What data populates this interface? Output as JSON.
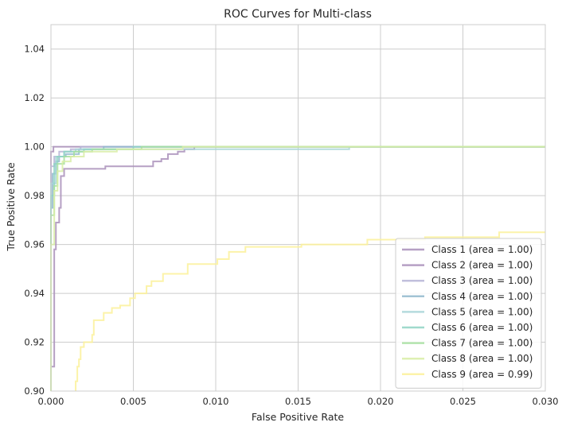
{
  "chart_data": {
    "type": "line",
    "title": "ROC Curves for Multi-class",
    "xlabel": "False Positive Rate",
    "ylabel": "True Positive Rate",
    "xlim": [
      0.0,
      0.03
    ],
    "ylim": [
      0.9,
      1.05
    ],
    "xticks": [
      "0.000",
      "0.005",
      "0.010",
      "0.015",
      "0.020",
      "0.025",
      "0.030"
    ],
    "yticks": [
      "0.90",
      "0.92",
      "0.94",
      "0.96",
      "0.98",
      "1.00",
      "1.02",
      "1.04"
    ],
    "grid": true,
    "legend_position": "lower-right",
    "series": [
      {
        "name": "Class 1 (area = 1.00)",
        "color": "#a98fba",
        "points": [
          [
            0,
            0.9
          ],
          [
            0,
            0.998
          ],
          [
            0.00015,
            0.998
          ],
          [
            0.00015,
            1.0
          ],
          [
            0.03,
            1.0
          ]
        ]
      },
      {
        "name": "Class 2 (area = 1.00)",
        "color": "#a98fba",
        "points": [
          [
            0,
            0.9
          ],
          [
            0,
            0.91
          ],
          [
            0.0002,
            0.91
          ],
          [
            0.0002,
            0.958
          ],
          [
            0.0003,
            0.958
          ],
          [
            0.0003,
            0.969
          ],
          [
            0.0005,
            0.969
          ],
          [
            0.0005,
            0.975
          ],
          [
            0.0006,
            0.975
          ],
          [
            0.0006,
            0.988
          ],
          [
            0.0008,
            0.988
          ],
          [
            0.0008,
            0.991
          ],
          [
            0.0033,
            0.991
          ],
          [
            0.0033,
            0.992
          ],
          [
            0.0062,
            0.992
          ],
          [
            0.0062,
            0.994
          ],
          [
            0.0067,
            0.994
          ],
          [
            0.0067,
            0.995
          ],
          [
            0.0071,
            0.995
          ],
          [
            0.0071,
            0.997
          ],
          [
            0.0077,
            0.997
          ],
          [
            0.0077,
            0.998
          ],
          [
            0.0081,
            0.998
          ],
          [
            0.0081,
            0.999
          ],
          [
            0.0087,
            0.999
          ],
          [
            0.0087,
            1.0
          ],
          [
            0.03,
            1.0
          ]
        ]
      },
      {
        "name": "Class 3 (area = 1.00)",
        "color": "#b6b4d6",
        "points": [
          [
            0,
            0.9
          ],
          [
            0,
            0.992
          ],
          [
            0.0002,
            0.992
          ],
          [
            0.0002,
            0.996
          ],
          [
            0.0005,
            0.996
          ],
          [
            0.0005,
            0.998
          ],
          [
            0.0012,
            0.998
          ],
          [
            0.0012,
            0.999
          ],
          [
            0.0018,
            0.999
          ],
          [
            0.0018,
            1.0
          ],
          [
            0.03,
            1.0
          ]
        ]
      },
      {
        "name": "Class 4 (area = 1.00)",
        "color": "#92b9cc",
        "points": [
          [
            0,
            0.9
          ],
          [
            0,
            0.975
          ],
          [
            0.0001,
            0.975
          ],
          [
            0.0001,
            0.989
          ],
          [
            0.0003,
            0.989
          ],
          [
            0.0003,
            0.994
          ],
          [
            0.0005,
            0.994
          ],
          [
            0.0005,
            0.996
          ],
          [
            0.0009,
            0.996
          ],
          [
            0.0009,
            0.997
          ],
          [
            0.0017,
            0.997
          ],
          [
            0.0017,
            0.999
          ],
          [
            0.0032,
            0.999
          ],
          [
            0.0032,
            1.0
          ],
          [
            0.03,
            1.0
          ]
        ]
      },
      {
        "name": "Class 5 (area = 1.00)",
        "color": "#a8d5d8",
        "points": [
          [
            0,
            0.9
          ],
          [
            0,
            0.985
          ],
          [
            0.0003,
            0.985
          ],
          [
            0.0003,
            0.996
          ],
          [
            0.0008,
            0.996
          ],
          [
            0.0008,
            0.998
          ],
          [
            0.0015,
            0.998
          ],
          [
            0.0015,
            0.999
          ],
          [
            0.0181,
            0.999
          ],
          [
            0.0181,
            1.0
          ],
          [
            0.03,
            1.0
          ]
        ]
      },
      {
        "name": "Class 6 (area = 1.00)",
        "color": "#8fd3c4",
        "points": [
          [
            0,
            0.9
          ],
          [
            0,
            0.98
          ],
          [
            0.0002,
            0.98
          ],
          [
            0.0002,
            0.993
          ],
          [
            0.0004,
            0.993
          ],
          [
            0.0004,
            0.996
          ],
          [
            0.0008,
            0.996
          ],
          [
            0.0008,
            0.998
          ],
          [
            0.002,
            0.998
          ],
          [
            0.002,
            0.999
          ],
          [
            0.005,
            0.999
          ],
          [
            0.005,
            1.0
          ],
          [
            0.03,
            1.0
          ]
        ]
      },
      {
        "name": "Class 7 (area = 1.00)",
        "color": "#a6dfa0",
        "points": [
          [
            0,
            0.9
          ],
          [
            0,
            0.972
          ],
          [
            0.0002,
            0.972
          ],
          [
            0.0002,
            0.984
          ],
          [
            0.0004,
            0.984
          ],
          [
            0.0004,
            0.993
          ],
          [
            0.0008,
            0.993
          ],
          [
            0.0008,
            0.996
          ],
          [
            0.0014,
            0.996
          ],
          [
            0.0014,
            0.998
          ],
          [
            0.0025,
            0.998
          ],
          [
            0.0025,
            0.999
          ],
          [
            0.0055,
            0.999
          ],
          [
            0.0055,
            1.0
          ],
          [
            0.03,
            1.0
          ]
        ]
      },
      {
        "name": "Class 8 (area = 1.00)",
        "color": "#d8eda6",
        "points": [
          [
            0,
            0.9
          ],
          [
            0,
            0.96
          ],
          [
            0.0002,
            0.96
          ],
          [
            0.0002,
            0.982
          ],
          [
            0.0004,
            0.982
          ],
          [
            0.0004,
            0.99
          ],
          [
            0.0007,
            0.99
          ],
          [
            0.0007,
            0.994
          ],
          [
            0.0012,
            0.994
          ],
          [
            0.0012,
            0.996
          ],
          [
            0.002,
            0.996
          ],
          [
            0.002,
            0.998
          ],
          [
            0.004,
            0.998
          ],
          [
            0.004,
            0.999
          ],
          [
            0.008,
            0.999
          ],
          [
            0.008,
            1.0
          ],
          [
            0.03,
            1.0
          ]
        ]
      },
      {
        "name": "Class 9 (area = 0.99)",
        "color": "#fbf19a",
        "points": [
          [
            0.0015,
            0.9
          ],
          [
            0.0015,
            0.904
          ],
          [
            0.0016,
            0.904
          ],
          [
            0.0016,
            0.91
          ],
          [
            0.0017,
            0.91
          ],
          [
            0.0017,
            0.913
          ],
          [
            0.0018,
            0.913
          ],
          [
            0.0018,
            0.918
          ],
          [
            0.002,
            0.918
          ],
          [
            0.002,
            0.92
          ],
          [
            0.0025,
            0.92
          ],
          [
            0.0025,
            0.923
          ],
          [
            0.0026,
            0.923
          ],
          [
            0.0026,
            0.929
          ],
          [
            0.0032,
            0.929
          ],
          [
            0.0032,
            0.932
          ],
          [
            0.0037,
            0.932
          ],
          [
            0.0037,
            0.934
          ],
          [
            0.0042,
            0.934
          ],
          [
            0.0042,
            0.935
          ],
          [
            0.0048,
            0.935
          ],
          [
            0.0048,
            0.938
          ],
          [
            0.0051,
            0.938
          ],
          [
            0.0051,
            0.94
          ],
          [
            0.0058,
            0.94
          ],
          [
            0.0058,
            0.943
          ],
          [
            0.0061,
            0.943
          ],
          [
            0.0061,
            0.945
          ],
          [
            0.0068,
            0.945
          ],
          [
            0.0068,
            0.948
          ],
          [
            0.0083,
            0.948
          ],
          [
            0.0083,
            0.952
          ],
          [
            0.0101,
            0.952
          ],
          [
            0.0101,
            0.954
          ],
          [
            0.0108,
            0.954
          ],
          [
            0.0108,
            0.957
          ],
          [
            0.0118,
            0.957
          ],
          [
            0.0118,
            0.959
          ],
          [
            0.0152,
            0.959
          ],
          [
            0.0152,
            0.96
          ],
          [
            0.0192,
            0.96
          ],
          [
            0.0192,
            0.962
          ],
          [
            0.0227,
            0.962
          ],
          [
            0.0227,
            0.963
          ],
          [
            0.0272,
            0.963
          ],
          [
            0.0272,
            0.965
          ],
          [
            0.03,
            0.965
          ]
        ]
      }
    ]
  }
}
